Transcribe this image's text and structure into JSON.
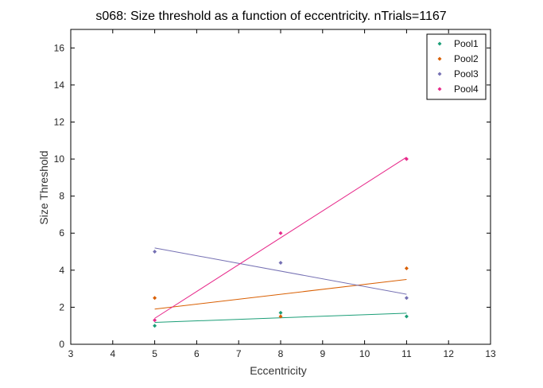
{
  "chart_data": {
    "type": "scatter",
    "title": "s068: Size threshold as a function of eccentricity. nTrials=1167",
    "xlabel": "Eccentricity",
    "ylabel": "Size Threshold",
    "xlim": [
      3,
      13
    ],
    "ylim": [
      0,
      17
    ],
    "xticks": [
      3,
      4,
      5,
      6,
      7,
      8,
      9,
      10,
      11,
      12,
      13
    ],
    "yticks": [
      0,
      2,
      4,
      6,
      8,
      10,
      12,
      14,
      16
    ],
    "grid": false,
    "legend_position": "top-right",
    "series": [
      {
        "name": "Pool1",
        "color": "#1b9e77",
        "points": [
          [
            5,
            1.0
          ],
          [
            8,
            1.7
          ],
          [
            11,
            1.5
          ]
        ],
        "fit": [
          [
            5,
            1.18
          ],
          [
            11,
            1.68
          ]
        ]
      },
      {
        "name": "Pool2",
        "color": "#d95f02",
        "points": [
          [
            5,
            2.5
          ],
          [
            8,
            1.5
          ],
          [
            11,
            4.1
          ]
        ],
        "fit": [
          [
            5,
            1.9
          ],
          [
            11,
            3.5
          ]
        ]
      },
      {
        "name": "Pool3",
        "color": "#7570b3",
        "points": [
          [
            5,
            5.0
          ],
          [
            8,
            4.4
          ],
          [
            11,
            2.5
          ]
        ],
        "fit": [
          [
            5,
            5.2
          ],
          [
            11,
            2.7
          ]
        ]
      },
      {
        "name": "Pool4",
        "color": "#e7298a",
        "points": [
          [
            5,
            1.3
          ],
          [
            8,
            6.0
          ],
          [
            11,
            10.0
          ]
        ],
        "fit": [
          [
            5,
            1.4
          ],
          [
            11,
            10.1
          ]
        ]
      }
    ]
  }
}
